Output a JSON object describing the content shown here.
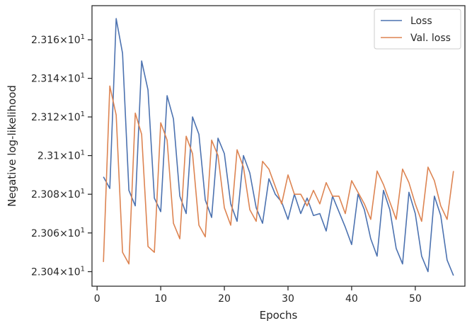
{
  "chart_data": {
    "type": "line",
    "xlabel": "Epochs",
    "ylabel": "Negative log-likelihood",
    "xlim": [
      -0.8,
      57.8
    ],
    "ylim": [
      23.0325,
      23.1777
    ],
    "yscale": "log",
    "grid": false,
    "legend_position": "top-right",
    "x_ticks": [
      {
        "value": 0,
        "label": "0"
      },
      {
        "value": 10,
        "label": "10"
      },
      {
        "value": 20,
        "label": "20"
      },
      {
        "value": 30,
        "label": "30"
      },
      {
        "value": 40,
        "label": "40"
      },
      {
        "value": 50,
        "label": "50"
      }
    ],
    "y_ticks": [
      {
        "value": 23.04,
        "mantissa": "2.304",
        "exp": "1"
      },
      {
        "value": 23.06,
        "mantissa": "2.306",
        "exp": "1"
      },
      {
        "value": 23.08,
        "mantissa": "2.308",
        "exp": "1"
      },
      {
        "value": 23.1,
        "mantissa": "2.31",
        "exp": "1"
      },
      {
        "value": 23.12,
        "mantissa": "2.312",
        "exp": "1"
      },
      {
        "value": 23.14,
        "mantissa": "2.314",
        "exp": "1"
      },
      {
        "value": 23.16,
        "mantissa": "2.316",
        "exp": "1"
      }
    ],
    "x": [
      1,
      2,
      3,
      4,
      5,
      6,
      7,
      8,
      9,
      10,
      11,
      12,
      13,
      14,
      15,
      16,
      17,
      18,
      19,
      20,
      21,
      22,
      23,
      24,
      25,
      26,
      27,
      28,
      29,
      30,
      31,
      32,
      33,
      34,
      35,
      36,
      37,
      38,
      39,
      40,
      41,
      42,
      43,
      44,
      45,
      46,
      47,
      48,
      49,
      50,
      51,
      52,
      53,
      54,
      55,
      56
    ],
    "series": [
      {
        "name": "Loss",
        "color": "#4c72b0",
        "values": [
          23.089,
          23.083,
          23.171,
          23.153,
          23.082,
          23.074,
          23.149,
          23.134,
          23.078,
          23.071,
          23.131,
          23.119,
          23.079,
          23.07,
          23.12,
          23.111,
          23.077,
          23.068,
          23.109,
          23.101,
          23.075,
          23.066,
          23.1,
          23.091,
          23.073,
          23.065,
          23.088,
          23.08,
          23.076,
          23.067,
          23.08,
          23.07,
          23.078,
          23.069,
          23.07,
          23.061,
          23.079,
          23.071,
          23.063,
          23.054,
          23.08,
          23.072,
          23.057,
          23.048,
          23.082,
          23.072,
          23.052,
          23.044,
          23.081,
          23.07,
          23.048,
          23.04,
          23.079,
          23.069,
          23.046,
          23.038
        ]
      },
      {
        "name": "Val. loss",
        "color": "#dd8452",
        "values": [
          23.045,
          23.136,
          23.121,
          23.05,
          23.044,
          23.122,
          23.111,
          23.053,
          23.05,
          23.117,
          23.108,
          23.065,
          23.057,
          23.11,
          23.101,
          23.064,
          23.058,
          23.108,
          23.1,
          23.073,
          23.064,
          23.103,
          23.094,
          23.072,
          23.066,
          23.097,
          23.093,
          23.084,
          23.075,
          23.09,
          23.08,
          23.08,
          23.074,
          23.082,
          23.075,
          23.086,
          23.079,
          23.079,
          23.07,
          23.087,
          23.081,
          23.075,
          23.067,
          23.092,
          23.085,
          23.076,
          23.067,
          23.093,
          23.086,
          23.075,
          23.066,
          23.094,
          23.087,
          23.074,
          23.067,
          23.092
        ]
      }
    ]
  }
}
